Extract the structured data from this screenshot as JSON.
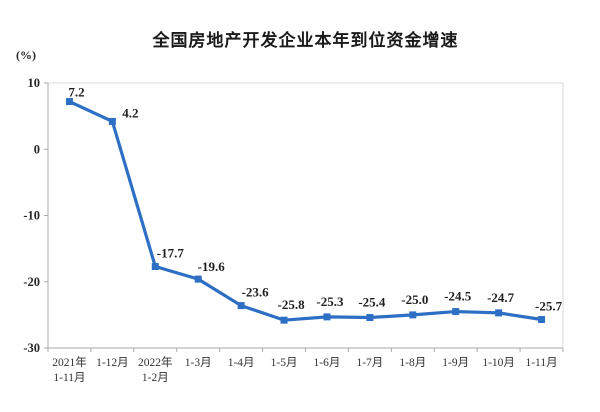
{
  "chart": {
    "title": "全国房地产开发企业本年到位资金增速",
    "unit_label": "(%)"
  },
  "chart_data": {
    "type": "line",
    "title": "全国房地产开发企业本年到位资金增速",
    "unit": "(%)",
    "categories": [
      "2021年\n1-11月",
      "1-12月",
      "2022年\n1-2月",
      "1-3月",
      "1-4月",
      "1-5月",
      "1-6月",
      "1-7月",
      "1-8月",
      "1-9月",
      "1-10月",
      "1-11月"
    ],
    "values": [
      7.2,
      4.2,
      -17.7,
      -19.6,
      -23.6,
      -25.8,
      -25.3,
      -25.4,
      -25.0,
      -24.5,
      -24.7,
      -25.7
    ],
    "data_labels": [
      "7.2",
      "4.2",
      "-17.7",
      "-19.6",
      "-23.6",
      "-25.8",
      "-25.3",
      "-25.4",
      "-25.0",
      "-24.5",
      "-24.7",
      "-25.7"
    ],
    "ylim": [
      -30,
      10
    ],
    "yticks": [
      10,
      0,
      -10,
      -20,
      -30
    ],
    "grid": false,
    "legend": "none",
    "line_color": "#2d6fc4",
    "marker": "square",
    "text_color": "#262626",
    "axis_color": "#a8a8a8",
    "box_border_color": "#d9d9d9"
  }
}
